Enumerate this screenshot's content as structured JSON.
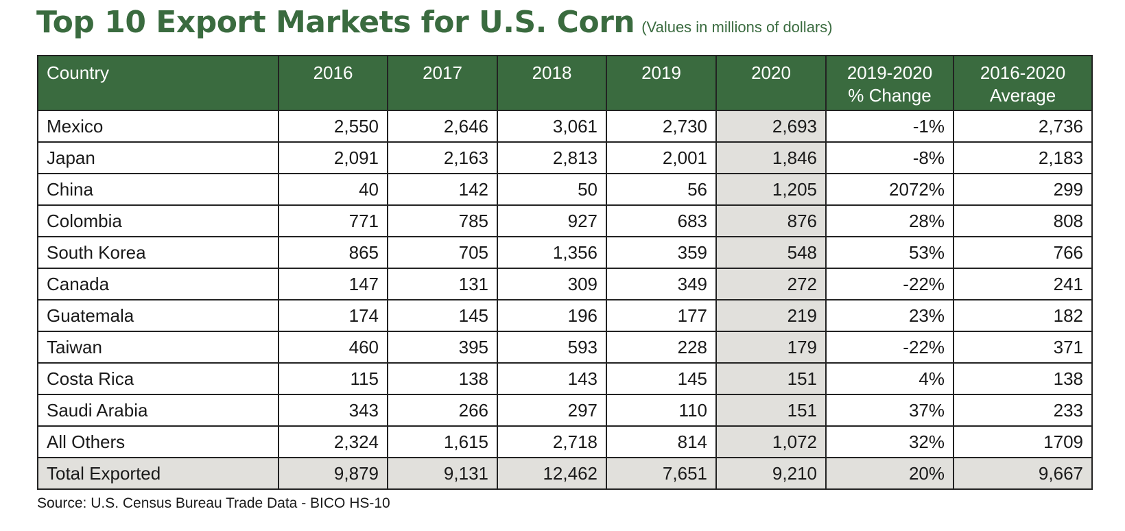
{
  "title": "Top 10 Export Markets for U.S. Corn",
  "subtitle": "(Values in millions of dollars)",
  "source": "Source: U.S. Census Bureau Trade Data - BICO HS-10",
  "colors": {
    "header_bg": "#3a6b3f",
    "title_color": "#3a6b3f",
    "highlight_bg": "#e1e0dc"
  },
  "table": {
    "headers": [
      {
        "line1": "Country",
        "line2": ""
      },
      {
        "line1": "2016",
        "line2": ""
      },
      {
        "line1": "2017",
        "line2": ""
      },
      {
        "line1": "2018",
        "line2": ""
      },
      {
        "line1": "2019",
        "line2": ""
      },
      {
        "line1": "2020",
        "line2": ""
      },
      {
        "line1": "2019-2020",
        "line2": "% Change"
      },
      {
        "line1": "2016-2020",
        "line2": "Average"
      }
    ],
    "rows": [
      [
        "Mexico",
        "2,550",
        "2,646",
        "3,061",
        "2,730",
        "2,693",
        "-1%",
        "2,736"
      ],
      [
        "Japan",
        "2,091",
        "2,163",
        "2,813",
        "2,001",
        "1,846",
        "-8%",
        "2,183"
      ],
      [
        "China",
        "40",
        "142",
        "50",
        "56",
        "1,205",
        "2072%",
        "299"
      ],
      [
        "Colombia",
        "771",
        "785",
        "927",
        "683",
        "876",
        "28%",
        "808"
      ],
      [
        "South Korea",
        "865",
        "705",
        "1,356",
        "359",
        "548",
        "53%",
        "766"
      ],
      [
        "Canada",
        "147",
        "131",
        "309",
        "349",
        "272",
        "-22%",
        "241"
      ],
      [
        "Guatemala",
        "174",
        "145",
        "196",
        "177",
        "219",
        "23%",
        "182"
      ],
      [
        "Taiwan",
        "460",
        "395",
        "593",
        "228",
        "179",
        "-22%",
        "371"
      ],
      [
        "Costa Rica",
        "115",
        "138",
        "143",
        "145",
        "151",
        "4%",
        "138"
      ],
      [
        "Saudi Arabia",
        "343",
        "266",
        "297",
        "110",
        "151",
        "37%",
        "233"
      ],
      [
        "All Others",
        "2,324",
        "1,615",
        "2,718",
        "814",
        "1,072",
        "32%",
        "1709"
      ]
    ],
    "total": [
      "Total Exported",
      "9,879",
      "9,131",
      "12,462",
      "7,651",
      "9,210",
      "20%",
      "9,667"
    ]
  }
}
